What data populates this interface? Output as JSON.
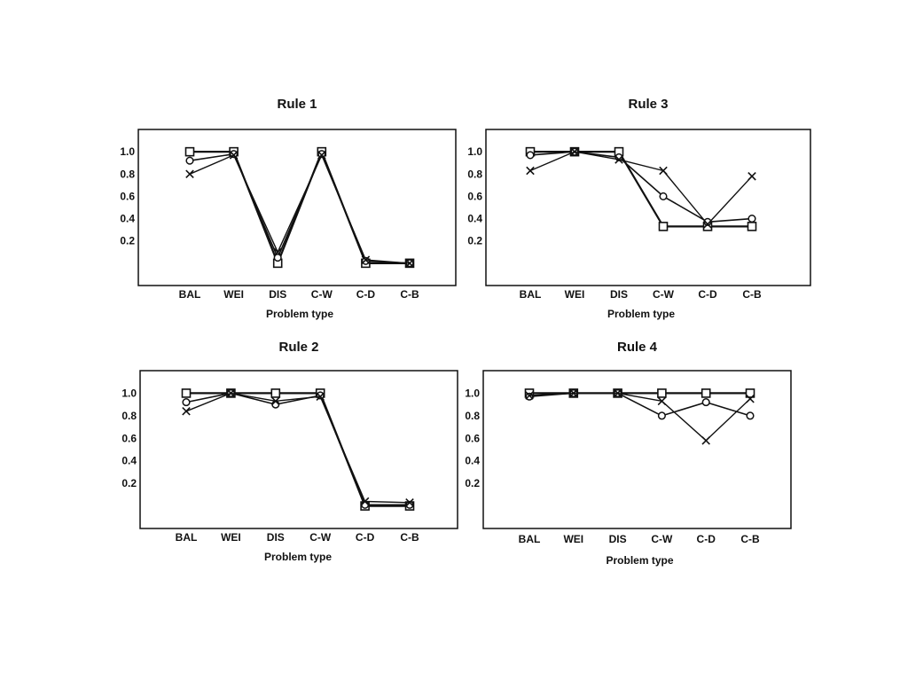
{
  "figure": {
    "background": "#ffffff",
    "ink": "#111111"
  },
  "chart_data": [
    {
      "type": "line",
      "title": "Rule 1",
      "xlabel": "Problem type",
      "ylabel": "",
      "categories": [
        "BAL",
        "WEI",
        "DIS",
        "C-W",
        "C-D",
        "C-B"
      ],
      "yticks": [
        "1.0",
        "0.8",
        "0.6",
        "0.4",
        "0.2"
      ],
      "ylim": [
        -0.2,
        1.2
      ],
      "grid": false,
      "series": [
        {
          "marker": "square",
          "values": [
            1.0,
            1.0,
            0.0,
            1.0,
            0.0,
            0.0
          ]
        },
        {
          "marker": "circle",
          "values": [
            0.92,
            0.98,
            0.05,
            0.98,
            0.02,
            0.0
          ]
        },
        {
          "marker": "cross",
          "values": [
            0.8,
            0.97,
            0.1,
            0.97,
            0.03,
            0.0
          ]
        }
      ]
    },
    {
      "type": "line",
      "title": "Rule 3",
      "xlabel": "Problem type",
      "ylabel": "",
      "categories": [
        "BAL",
        "WEI",
        "DIS",
        "C-W",
        "C-D",
        "C-B"
      ],
      "yticks": [
        "1.0",
        "0.8",
        "0.6",
        "0.4",
        "0.2"
      ],
      "ylim": [
        -0.2,
        1.2
      ],
      "grid": false,
      "series": [
        {
          "marker": "square",
          "values": [
            1.0,
            1.0,
            1.0,
            0.33,
            0.33,
            0.33
          ]
        },
        {
          "marker": "circle",
          "values": [
            0.97,
            1.0,
            0.95,
            0.6,
            0.37,
            0.4
          ]
        },
        {
          "marker": "cross",
          "values": [
            0.83,
            1.0,
            0.93,
            0.83,
            0.35,
            0.78
          ]
        }
      ]
    },
    {
      "type": "line",
      "title": "Rule 2",
      "xlabel": "Problem type",
      "ylabel": "",
      "categories": [
        "BAL",
        "WEI",
        "DIS",
        "C-W",
        "C-D",
        "C-B"
      ],
      "yticks": [
        "1.0",
        "0.8",
        "0.6",
        "0.4",
        "0.2"
      ],
      "ylim": [
        -0.2,
        1.2
      ],
      "grid": false,
      "series": [
        {
          "marker": "square",
          "values": [
            1.0,
            1.0,
            1.0,
            1.0,
            0.0,
            0.0
          ]
        },
        {
          "marker": "circle",
          "values": [
            0.92,
            1.0,
            0.9,
            0.98,
            0.01,
            0.01
          ]
        },
        {
          "marker": "cross",
          "values": [
            0.84,
            1.0,
            0.93,
            0.97,
            0.04,
            0.03
          ]
        }
      ]
    },
    {
      "type": "line",
      "title": "Rule 4",
      "xlabel": "Problem type",
      "ylabel": "",
      "categories": [
        "BAL",
        "WEI",
        "DIS",
        "C-W",
        "C-D",
        "C-B"
      ],
      "yticks": [
        "1.0",
        "0.8",
        "0.6",
        "0.4",
        "0.2"
      ],
      "ylim": [
        -0.2,
        1.2
      ],
      "grid": false,
      "series": [
        {
          "marker": "square",
          "values": [
            1.0,
            1.0,
            1.0,
            1.0,
            1.0,
            1.0
          ]
        },
        {
          "marker": "circle",
          "values": [
            0.97,
            1.0,
            1.0,
            0.8,
            0.92,
            0.8
          ]
        },
        {
          "marker": "cross",
          "values": [
            0.98,
            1.0,
            1.0,
            0.93,
            0.58,
            0.95
          ]
        }
      ]
    }
  ]
}
